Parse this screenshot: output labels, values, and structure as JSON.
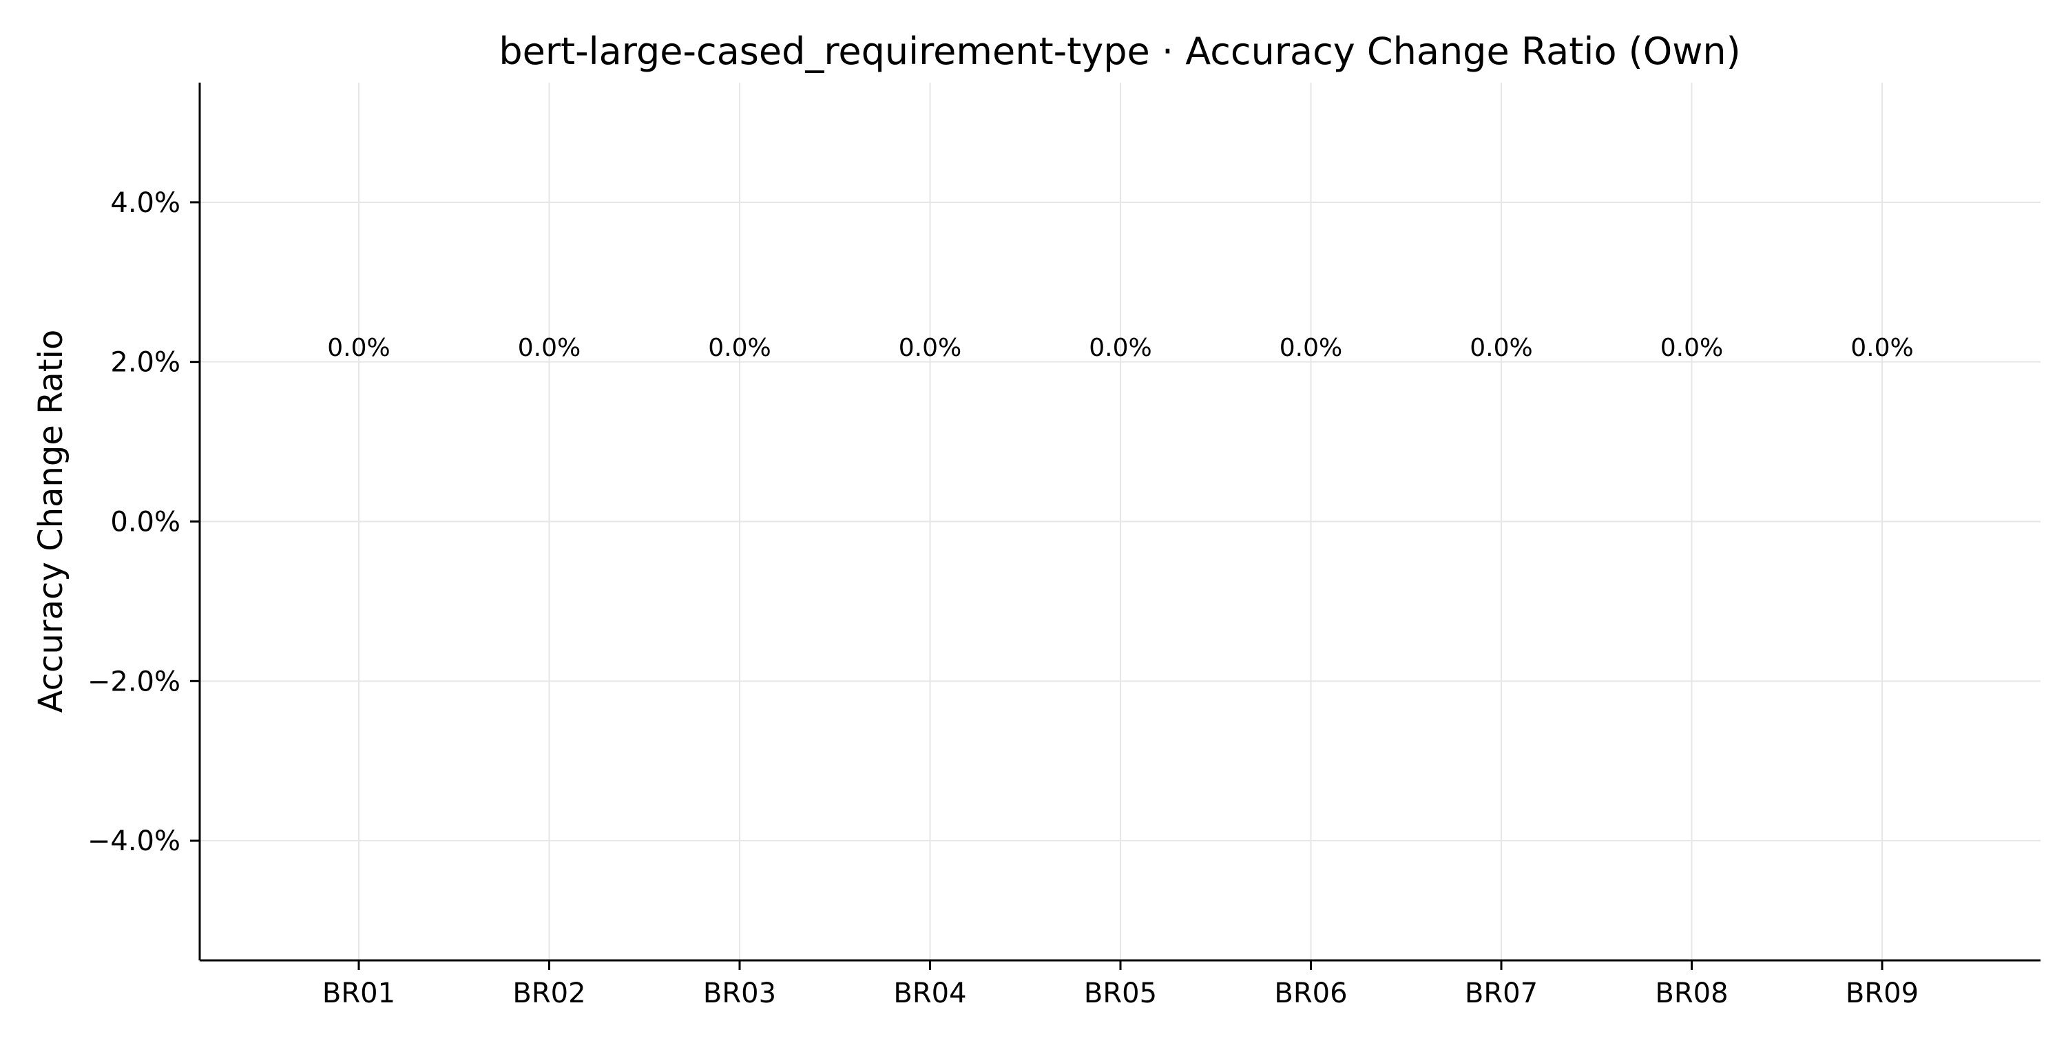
{
  "chart_data": {
    "type": "bar",
    "title": "bert-large-cased_requirement-type · Accuracy Change Ratio (Own)",
    "xlabel": "",
    "ylabel": "Accuracy Change Ratio",
    "categories": [
      "BR01",
      "BR02",
      "BR03",
      "BR04",
      "BR05",
      "BR06",
      "BR07",
      "BR08",
      "BR09"
    ],
    "values": [
      0.0,
      0.0,
      0.0,
      0.0,
      0.0,
      0.0,
      0.0,
      0.0,
      0.0
    ],
    "value_labels": [
      "0.0%",
      "0.0%",
      "0.0%",
      "0.0%",
      "0.0%",
      "0.0%",
      "0.0%",
      "0.0%",
      "0.0%"
    ],
    "ylim": [
      -5.5,
      5.5
    ],
    "yticks": [
      -4,
      -2,
      0,
      2,
      4
    ],
    "ytick_labels": [
      "−4.0%",
      "−2.0%",
      "0.0%",
      "2.0%",
      "4.0%"
    ],
    "grid": true,
    "colors": {
      "grid": "#e6e6e6",
      "axis": "#000000",
      "text": "#000000"
    }
  }
}
